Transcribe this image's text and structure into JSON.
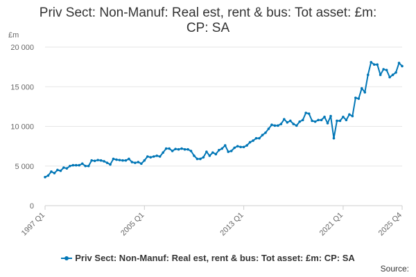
{
  "title_line1": "Priv Sect: Non-Manuf: Real est, rent & bus: Tot asset: £m:",
  "title_line2": "CP: SA",
  "source_label": "Source:",
  "chart_data": {
    "type": "line",
    "ylabel": "£m",
    "xlabel": "",
    "ylim": [
      0,
      20000
    ],
    "yticks": [
      0,
      5000,
      10000,
      15000,
      20000
    ],
    "ytick_labels": [
      "0",
      "5 000",
      "10 000",
      "15 000",
      "20 000"
    ],
    "xticks": [
      "1997 Q1",
      "2005 Q1",
      "2013 Q1",
      "2021 Q1",
      "2025 Q4"
    ],
    "grid": true,
    "legend_position": "bottom",
    "series_color": "#0076b6",
    "series": [
      {
        "name": "Priv Sect: Non-Manuf: Real est, rent & bus: Tot asset: £m: CP: SA",
        "start": "1997 Q1",
        "frequency": "quarterly",
        "values": [
          3600,
          3800,
          4300,
          4100,
          4500,
          4400,
          4800,
          4700,
          5000,
          5100,
          5100,
          5100,
          5300,
          5000,
          5000,
          5700,
          5650,
          5750,
          5700,
          5600,
          5400,
          5200,
          5900,
          5800,
          5750,
          5700,
          5700,
          5900,
          5500,
          5400,
          5500,
          5300,
          5700,
          6200,
          6100,
          6200,
          6300,
          6200,
          6700,
          7200,
          7200,
          6900,
          7150,
          7100,
          7200,
          7100,
          7100,
          6900,
          6300,
          5900,
          5900,
          6100,
          6800,
          6300,
          6700,
          6500,
          7000,
          7200,
          7600,
          6800,
          6900,
          7300,
          7500,
          7400,
          7400,
          7600,
          8000,
          8200,
          8500,
          8500,
          8900,
          9200,
          9700,
          10200,
          10100,
          10100,
          10300,
          10900,
          10500,
          10700,
          10300,
          10100,
          10600,
          10800,
          11700,
          11600,
          10700,
          10600,
          10800,
          10800,
          11200,
          10400,
          11300,
          8500,
          10700,
          10700,
          11200,
          10800,
          11500,
          11300,
          13600,
          13500,
          14800,
          14300,
          16500,
          18100,
          17800,
          17800,
          16500,
          17200,
          17100,
          16200,
          16500,
          16800,
          18000,
          17600
        ]
      }
    ]
  }
}
